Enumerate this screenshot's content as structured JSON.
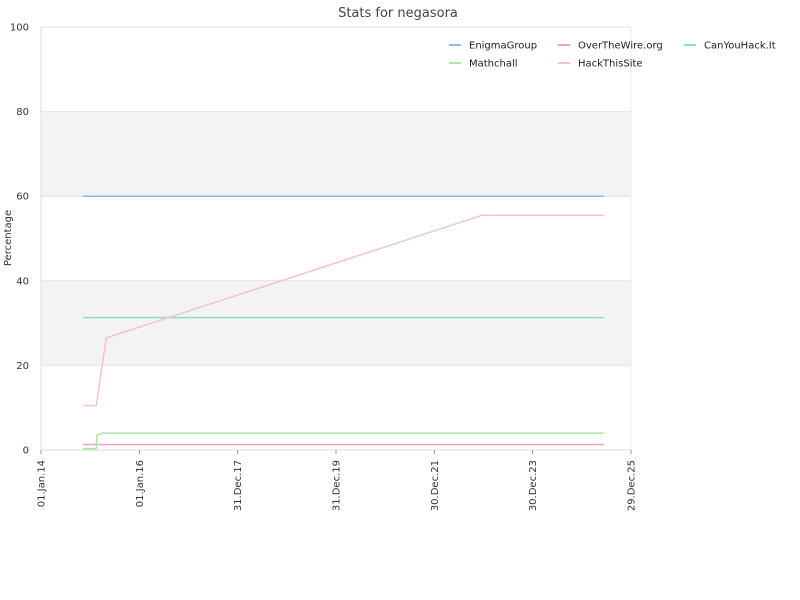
{
  "chart_data": {
    "type": "line",
    "title": "Stats for negasora",
    "xlabel": "",
    "ylabel": "Percentage",
    "x_type": "date",
    "xlim": [
      "2014-01-01",
      "2025-12-29"
    ],
    "ylim": [
      0,
      100
    ],
    "y_ticks": [
      0,
      20,
      40,
      60,
      80,
      100
    ],
    "x_ticks": [
      {
        "date": "2014-01-01",
        "label": "01.Jan.14"
      },
      {
        "date": "2016-01-01",
        "label": "01.Jan.16"
      },
      {
        "date": "2017-12-31",
        "label": "31.Dec.17"
      },
      {
        "date": "2019-12-31",
        "label": "31.Dec.19"
      },
      {
        "date": "2021-12-30",
        "label": "30.Dec.21"
      },
      {
        "date": "2023-12-30",
        "label": "30.Dec.23"
      },
      {
        "date": "2025-12-29",
        "label": "29.Dec.25"
      }
    ],
    "grid": true,
    "banded_background": true,
    "legend_position": "top-right",
    "series": [
      {
        "name": "EnigmaGroup",
        "color": "#8fb8e8",
        "points": [
          [
            "2014-11-10",
            60
          ],
          [
            "2025-06-10",
            60
          ]
        ]
      },
      {
        "name": "OverTheWire.org",
        "color": "#f0a0b8",
        "points": [
          [
            "2014-11-10",
            1.3
          ],
          [
            "2025-06-10",
            1.3
          ]
        ]
      },
      {
        "name": "CanYouHack.It",
        "color": "#8ce0c0",
        "points": [
          [
            "2014-11-10",
            31.3
          ],
          [
            "2025-06-10",
            31.3
          ]
        ]
      },
      {
        "name": "Mathchall",
        "color": "#a8e8a0",
        "points": [
          [
            "2014-11-10",
            0.3
          ],
          [
            "2015-02-15",
            0.3
          ],
          [
            "2015-02-20",
            3.5
          ],
          [
            "2015-04-01",
            4
          ],
          [
            "2025-06-10",
            4
          ]
        ]
      },
      {
        "name": "HackThisSite",
        "color": "#f4c4c4",
        "points": [
          [
            "2014-11-10",
            10.5
          ],
          [
            "2015-02-15",
            10.5
          ],
          [
            "2015-05-01",
            26.5
          ],
          [
            "2022-12-20",
            55.5
          ],
          [
            "2025-06-10",
            55.5
          ]
        ]
      }
    ]
  }
}
